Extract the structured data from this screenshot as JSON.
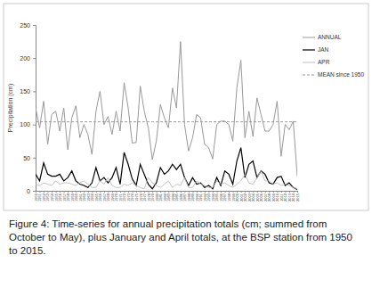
{
  "chart_data": {
    "type": "line",
    "caption": "Figure 4: Time-series for annual precipitation totals (cm; summed from October to May), plus January and April totals, at the BSP station from 1950 to 2015.",
    "y_label": "Precipitation (cm)",
    "x": [
      1950,
      1951,
      1952,
      1953,
      1954,
      1955,
      1956,
      1957,
      1958,
      1959,
      1960,
      1961,
      1962,
      1963,
      1964,
      1965,
      1966,
      1967,
      1968,
      1969,
      1970,
      1971,
      1972,
      1973,
      1974,
      1975,
      1976,
      1977,
      1978,
      1979,
      1980,
      1981,
      1982,
      1983,
      1984,
      1985,
      1986,
      1987,
      1988,
      1989,
      1990,
      1991,
      1992,
      1993,
      1994,
      1995,
      1996,
      1997,
      1998,
      1999,
      2000,
      2001,
      2002,
      2003,
      2004,
      2005,
      2006,
      2007,
      2008,
      2009,
      2010,
      2011,
      2012,
      2013,
      2014,
      2015
    ],
    "xlim": [
      1950,
      2015
    ],
    "xticks": [
      1950,
      1951,
      1952,
      1953,
      1954,
      1955,
      1956,
      1957,
      1958,
      1959,
      1960,
      1961,
      1962,
      1963,
      1964,
      1965,
      1966,
      1967,
      1968,
      1969,
      1970,
      1971,
      1972,
      1973,
      1974,
      1975,
      1976,
      1977,
      1978,
      1979,
      1980,
      1981,
      1982,
      1983,
      1984,
      1985,
      1986,
      1987,
      1988,
      1989,
      1990,
      1991,
      1992,
      1993,
      1994,
      1995,
      1996,
      1997,
      1998,
      1999,
      2000,
      2001,
      2002,
      2003,
      2004,
      2005,
      2006,
      2007,
      2008,
      2009,
      2010,
      2011,
      2012,
      2013,
      2014,
      2015
    ],
    "ylim": [
      0,
      250
    ],
    "yticks": [
      0,
      50,
      100,
      150,
      200,
      250
    ],
    "grid": false,
    "legend": "right",
    "series": [
      {
        "name": "ANNUAL",
        "color": "#999999",
        "line_style": "solid",
        "values": [
          125,
          95,
          135,
          70,
          115,
          120,
          90,
          125,
          62,
          110,
          128,
          80,
          100,
          85,
          55,
          120,
          150,
          100,
          112,
          85,
          120,
          90,
          163,
          125,
          72,
          73,
          158,
          120,
          95,
          47,
          75,
          130,
          110,
          95,
          155,
          125,
          225,
          100,
          60,
          80,
          115,
          110,
          70,
          65,
          48,
          100,
          105,
          105,
          100,
          75,
          155,
          197,
          80,
          120,
          82,
          140,
          115,
          90,
          90,
          100,
          135,
          52,
          100,
          92,
          105,
          22
        ]
      },
      {
        "name": "JAN",
        "color": "#000000",
        "line_style": "solid",
        "values": [
          25,
          15,
          42,
          25,
          22,
          22,
          25,
          15,
          20,
          30,
          15,
          10,
          8,
          5,
          12,
          35,
          15,
          20,
          12,
          20,
          35,
          10,
          58,
          40,
          18,
          8,
          40,
          25,
          10,
          3,
          12,
          35,
          25,
          30,
          40,
          32,
          40,
          20,
          8,
          20,
          10,
          12,
          5,
          8,
          3,
          20,
          8,
          30,
          25,
          10,
          45,
          65,
          20,
          40,
          45,
          20,
          30,
          25,
          12,
          10,
          20,
          22,
          8,
          12,
          5,
          2
        ]
      },
      {
        "name": "APR",
        "color": "#bbbbbb",
        "line_style": "solid",
        "values": [
          10,
          8,
          12,
          10,
          8,
          15,
          10,
          12,
          12,
          10,
          8,
          12,
          15,
          10,
          5,
          5,
          15,
          10,
          20,
          8,
          5,
          5,
          10,
          8,
          12,
          8,
          5,
          3,
          20,
          12,
          8,
          5,
          10,
          15,
          5,
          10,
          8,
          20,
          5,
          5,
          15,
          10,
          8,
          5,
          5,
          15,
          10,
          12,
          8,
          5,
          10,
          15,
          25,
          12,
          10,
          20,
          30,
          15,
          15,
          10,
          12,
          8,
          10,
          8,
          5,
          3
        ]
      },
      {
        "name": "MEAN since 1950",
        "color": "#999999",
        "line_style": "dashed",
        "values": [
          104,
          104,
          104,
          104,
          104,
          104,
          104,
          104,
          104,
          104,
          104,
          104,
          104,
          104,
          104,
          104,
          104,
          104,
          104,
          104,
          104,
          104,
          104,
          104,
          104,
          104,
          104,
          104,
          104,
          104,
          104,
          104,
          104,
          104,
          104,
          104,
          104,
          104,
          104,
          104,
          104,
          104,
          104,
          104,
          104,
          104,
          104,
          104,
          104,
          104,
          104,
          104,
          104,
          104,
          104,
          104,
          104,
          104,
          104,
          104,
          104,
          104,
          104,
          104,
          104,
          104
        ]
      }
    ]
  }
}
